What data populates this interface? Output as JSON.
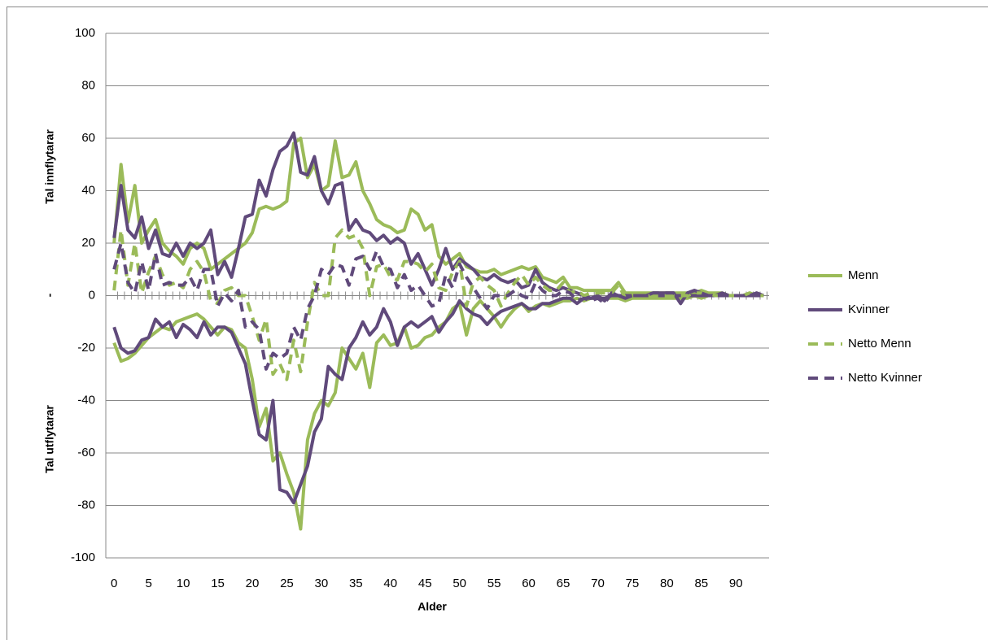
{
  "chart_data": {
    "type": "line",
    "xlabel": "Alder",
    "ylabel_top": "Tal innflytarar",
    "ylabel_mid": "-",
    "ylabel_bottom": "Tal utflytarar",
    "xlim": [
      -1.2,
      94.8
    ],
    "ylim": [
      -100,
      100
    ],
    "xticks": [
      0,
      5,
      10,
      15,
      20,
      25,
      30,
      35,
      40,
      45,
      50,
      55,
      60,
      65,
      70,
      75,
      80,
      85,
      90
    ],
    "yticks": [
      -100,
      -80,
      -60,
      -40,
      -20,
      0,
      20,
      40,
      60,
      80,
      100
    ],
    "grid": true,
    "legend": "right",
    "x": [
      0,
      1,
      2,
      3,
      4,
      5,
      6,
      7,
      8,
      9,
      10,
      11,
      12,
      13,
      14,
      15,
      16,
      17,
      18,
      19,
      20,
      21,
      22,
      23,
      24,
      25,
      26,
      27,
      28,
      29,
      30,
      31,
      32,
      33,
      34,
      35,
      36,
      37,
      38,
      39,
      40,
      41,
      42,
      43,
      44,
      45,
      46,
      47,
      48,
      49,
      50,
      51,
      52,
      53,
      54,
      55,
      56,
      57,
      58,
      59,
      60,
      61,
      62,
      63,
      64,
      65,
      66,
      67,
      68,
      69,
      70,
      71,
      72,
      73,
      74,
      75,
      76,
      77,
      78,
      79,
      80,
      81,
      82,
      83,
      84,
      85,
      86,
      87,
      88,
      89,
      90,
      91,
      92,
      93,
      94
    ],
    "series": [
      {
        "name": "Menn",
        "color": "#9bbb59",
        "dashed": false,
        "inflow": [
          20,
          50,
          28,
          42,
          20,
          25,
          29,
          20,
          17,
          15,
          12,
          18,
          20,
          18,
          10,
          12,
          14,
          16,
          18,
          20,
          24,
          33,
          34,
          33,
          34,
          36,
          58,
          60,
          45,
          50,
          40,
          42,
          59,
          45,
          46,
          51,
          40,
          35,
          29,
          27,
          26,
          24,
          25,
          33,
          31,
          25,
          27,
          15,
          12,
          14,
          16,
          11,
          10,
          9,
          9,
          10,
          8,
          9,
          10,
          11,
          10,
          11,
          7,
          6,
          5,
          7,
          3,
          3,
          2,
          2,
          2,
          2,
          2,
          5,
          1,
          1,
          1,
          1,
          1,
          1,
          1,
          1,
          1,
          1,
          1,
          2,
          1,
          1,
          1,
          0,
          0,
          0,
          1,
          0,
          0
        ],
        "outflow": [
          -18,
          -25,
          -24,
          -22,
          -19,
          -16,
          -14,
          -12,
          -13,
          -10,
          -9,
          -8,
          -7,
          -9,
          -12,
          -15,
          -12,
          -13,
          -18,
          -20,
          -32,
          -50,
          -43,
          -63,
          -60,
          -68,
          -75,
          -89,
          -55,
          -45,
          -40,
          -42,
          -37,
          -20,
          -24,
          -28,
          -22,
          -35,
          -18,
          -15,
          -19,
          -18,
          -12,
          -20,
          -19,
          -16,
          -15,
          -12,
          -10,
          -5,
          -3,
          -15,
          -5,
          -2,
          -5,
          -8,
          -12,
          -8,
          -5,
          -3,
          -6,
          -4,
          -3,
          -4,
          -3,
          -2,
          -2,
          -1,
          -2,
          -1,
          -1,
          -1,
          -1,
          -1,
          -2,
          -1,
          -1,
          -1,
          -1,
          -1,
          -1,
          -1,
          -1,
          -1,
          0,
          -1,
          0,
          0,
          0,
          0,
          0,
          0,
          0,
          0,
          0
        ]
      },
      {
        "name": "Kvinner",
        "color": "#604a7b",
        "dashed": false,
        "inflow": [
          22,
          42,
          25,
          22,
          30,
          18,
          25,
          16,
          15,
          20,
          15,
          20,
          18,
          20,
          25,
          8,
          13,
          7,
          18,
          30,
          31,
          44,
          38,
          48,
          55,
          57,
          62,
          47,
          46,
          53,
          40,
          35,
          42,
          43,
          25,
          29,
          25,
          24,
          21,
          23,
          20,
          22,
          20,
          12,
          16,
          10,
          4,
          10,
          18,
          10,
          14,
          12,
          10,
          7,
          6,
          8,
          6,
          5,
          6,
          3,
          4,
          10,
          5,
          3,
          2,
          3,
          2,
          1,
          0,
          -1,
          0,
          -2,
          1,
          0,
          -1,
          0,
          0,
          0,
          1,
          1,
          1,
          1,
          -3,
          1,
          2,
          1,
          0,
          0,
          1,
          0,
          0,
          0,
          0,
          1,
          0
        ],
        "outflow": [
          -12,
          -20,
          -22,
          -21,
          -17,
          -16,
          -9,
          -12,
          -10,
          -16,
          -11,
          -13,
          -16,
          -10,
          -15,
          -12,
          -12,
          -14,
          -20,
          -26,
          -40,
          -53,
          -55,
          -40,
          -74,
          -75,
          -79,
          -72,
          -65,
          -52,
          -47,
          -27,
          -30,
          -32,
          -20,
          -16,
          -10,
          -15,
          -12,
          -5,
          -10,
          -19,
          -12,
          -10,
          -12,
          -10,
          -8,
          -14,
          -10,
          -7,
          -2,
          -5,
          -7,
          -8,
          -11,
          -8,
          -6,
          -5,
          -4,
          -3,
          -5,
          -5,
          -3,
          -3,
          -2,
          -1,
          -1,
          -3,
          -1,
          -1,
          -1,
          -1,
          0,
          0,
          0,
          0,
          0,
          0,
          0,
          0,
          0,
          0,
          0,
          0,
          0,
          0,
          0,
          0,
          0,
          0,
          0,
          0,
          0,
          0,
          0
        ]
      },
      {
        "name": "Netto Menn",
        "color": "#9bbb59",
        "dashed": true,
        "values": [
          2,
          25,
          4,
          20,
          1,
          9,
          15,
          8,
          4,
          5,
          3,
          10,
          13,
          9,
          -2,
          -3,
          2,
          3,
          0,
          0,
          -8,
          -17,
          -9,
          -30,
          -26,
          -32,
          -17,
          -29,
          -10,
          5,
          0,
          0,
          22,
          25,
          22,
          23,
          18,
          0,
          11,
          12,
          7,
          6,
          13,
          13,
          12,
          9,
          12,
          3,
          2,
          9,
          13,
          -4,
          5,
          7,
          4,
          2,
          -4,
          1,
          5,
          8,
          4,
          7,
          4,
          2,
          2,
          5,
          1,
          2,
          0,
          1,
          1,
          1,
          1,
          4,
          -1,
          0,
          0,
          0,
          0,
          0,
          0,
          0,
          0,
          0,
          1,
          1,
          1,
          0,
          0,
          0,
          0,
          0,
          1,
          0,
          0
        ]
      },
      {
        "name": "Netto Kvinner",
        "color": "#604a7b",
        "dashed": true,
        "values": [
          10,
          20,
          5,
          1,
          13,
          2,
          16,
          4,
          5,
          4,
          4,
          7,
          2,
          10,
          10,
          -4,
          1,
          -2,
          2,
          -12,
          -10,
          -13,
          -28,
          -22,
          -24,
          -22,
          -12,
          -17,
          -5,
          0,
          10,
          8,
          12,
          11,
          4,
          14,
          15,
          10,
          17,
          11,
          10,
          3,
          8,
          2,
          4,
          0,
          -4,
          -3,
          8,
          3,
          12,
          7,
          3,
          -1,
          -5,
          0,
          0,
          0,
          2,
          0,
          -1,
          5,
          2,
          0,
          0,
          2,
          1,
          -2,
          -1,
          -2,
          -1,
          -3,
          1,
          0,
          -1,
          0,
          0,
          0,
          1,
          1,
          1,
          1,
          -3,
          1,
          2,
          1,
          0,
          0,
          0,
          0,
          0,
          0,
          0,
          1,
          0
        ]
      }
    ]
  }
}
